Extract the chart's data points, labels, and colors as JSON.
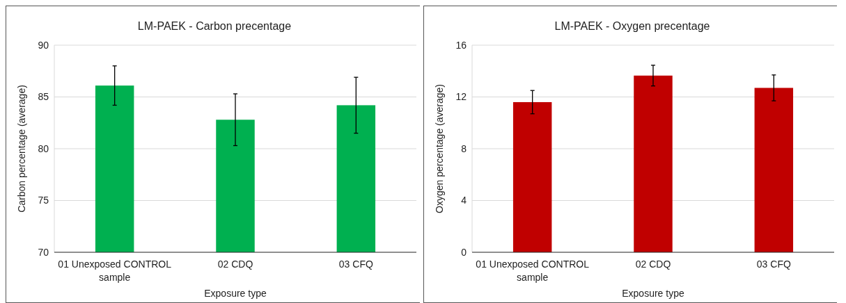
{
  "chart_data": [
    {
      "type": "bar",
      "title": "LM-PAEK - Carbon precentage",
      "xlabel": "Exposure type",
      "ylabel": "Carbon percentage (average)",
      "categories": [
        "01 Unexposed CONTROL sample",
        "02 CDQ",
        "03 CFQ"
      ],
      "values": [
        86.1,
        82.8,
        84.2
      ],
      "errors": [
        1.9,
        2.5,
        2.7
      ],
      "color": "#00b050",
      "ylim": [
        70,
        90
      ],
      "yticks": [
        70,
        75,
        80,
        85,
        90
      ],
      "grid": "y"
    },
    {
      "type": "bar",
      "title": "LM-PAEK - Oxygen precentage",
      "xlabel": "Exposure type",
      "ylabel": "Oxygen percentage (average)",
      "categories": [
        "01 Unexposed CONTROL sample",
        "02 CDQ",
        "03 CFQ"
      ],
      "values": [
        11.6,
        13.65,
        12.7
      ],
      "errors": [
        0.9,
        0.8,
        1.0
      ],
      "color": "#c00000",
      "ylim": [
        0,
        16
      ],
      "yticks": [
        0,
        4,
        8,
        12,
        16
      ],
      "grid": "y"
    }
  ]
}
